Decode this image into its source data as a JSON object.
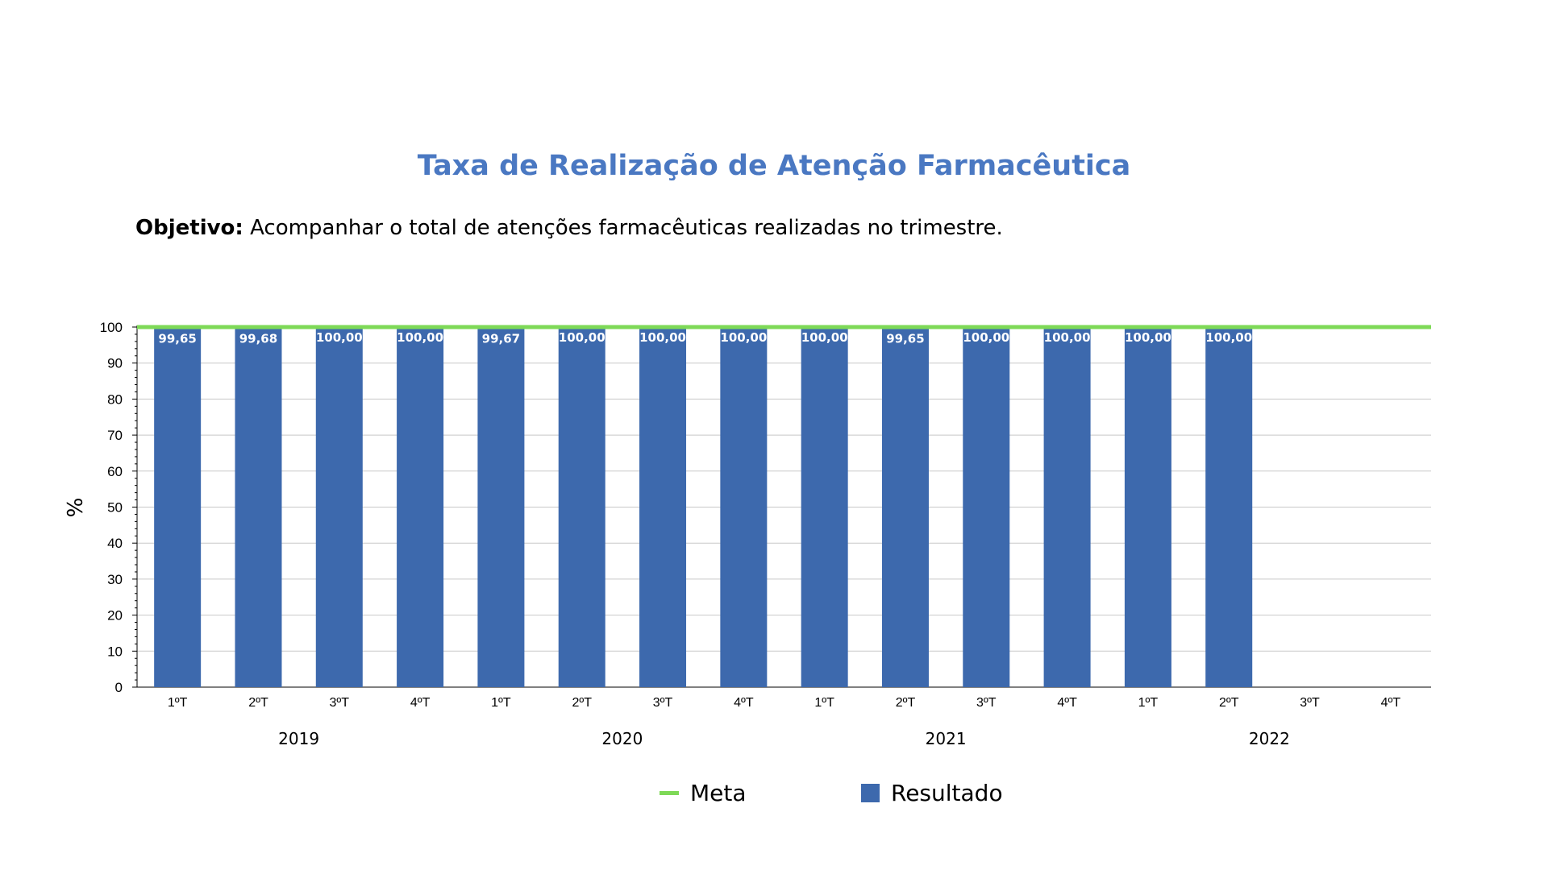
{
  "header": {
    "title": "Taxa de Realização de Atenção Farmacêutica",
    "objective_label": "Objetivo:",
    "objective_text": "Acompanhar o total de atenções farmacêuticas realizadas no trimestre."
  },
  "colors": {
    "title": "#4a78c2",
    "bar": "#3d69ad",
    "meta_line": "#7ed957",
    "grid": "#c8c8c8",
    "bar_label": "#ffffff"
  },
  "chart_data": {
    "type": "bar",
    "ylabel": "%",
    "ylim": [
      0,
      100
    ],
    "yticks": [
      0,
      10,
      20,
      30,
      40,
      50,
      60,
      70,
      80,
      90,
      100
    ],
    "grid": true,
    "legend_position": "bottom",
    "categories": [
      "1ºT",
      "2ºT",
      "3ºT",
      "4ºT",
      "1ºT",
      "2ºT",
      "3ºT",
      "4ºT",
      "1ºT",
      "2ºT",
      "3ºT",
      "4ºT",
      "1ºT",
      "2ºT",
      "3ºT",
      "4ºT"
    ],
    "year_groups": [
      "2019",
      "2020",
      "2021",
      "2022"
    ],
    "series": [
      {
        "name": "Meta",
        "kind": "line",
        "values": [
          100,
          100,
          100,
          100,
          100,
          100,
          100,
          100,
          100,
          100,
          100,
          100,
          100,
          100,
          100,
          100
        ]
      },
      {
        "name": "Resultado",
        "kind": "bar",
        "values": [
          99.65,
          99.68,
          100.0,
          100.0,
          99.67,
          100.0,
          100.0,
          100.0,
          100.0,
          99.65,
          100.0,
          100.0,
          100.0,
          100.0,
          null,
          null
        ],
        "labels": [
          "99,65",
          "99,68",
          "100,00",
          "100,00",
          "99,67",
          "100,00",
          "100,00",
          "100,00",
          "100,00",
          "99,65",
          "100,00",
          "100,00",
          "100,00",
          "100,00",
          "",
          ""
        ]
      }
    ]
  }
}
